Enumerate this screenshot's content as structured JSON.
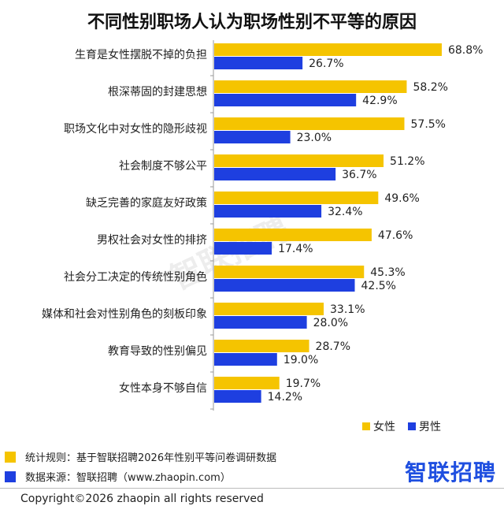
{
  "colors": {
    "female": "#F5C400",
    "male": "#1E3FE0",
    "brand": "#1F4FE0"
  },
  "title": "不同性别职场人认为职场性别不平等的原因",
  "watermark": "智联招聘",
  "chart_data": {
    "type": "bar",
    "orientation": "horizontal",
    "title": "不同性别职场人认为职场性别不平等的原因",
    "categories": [
      "生育是女性摆脱不掉的负担",
      "根深蒂固的封建思想",
      "职场文化中对女性的隐形歧视",
      "社会制度不够公平",
      "缺乏完善的家庭友好政策",
      "男权社会对女性的排挤",
      "社会分工决定的传统性别角色",
      "媒体和社会对性别角色的刻板印象",
      "教育导致的性别偏见",
      "女性本身不够自信"
    ],
    "series": [
      {
        "name": "女性",
        "values": [
          68.8,
          58.2,
          57.5,
          51.2,
          49.6,
          47.6,
          45.3,
          33.1,
          28.7,
          19.7
        ]
      },
      {
        "name": "男性",
        "values": [
          26.7,
          42.9,
          23.0,
          36.7,
          32.4,
          17.4,
          42.5,
          28.0,
          19.0,
          14.2
        ]
      }
    ],
    "value_suffix": "%",
    "xlim": [
      0,
      70
    ],
    "legend_position": "bottom-right"
  },
  "footer": {
    "rule": "统计规则：基于智联招聘2026年性别平等问卷调研数据",
    "source": "数据来源：智联招聘（www.zhaopin.com）",
    "brand": "智联招聘",
    "copyright": "Copyright©2026 zhaopin all rights reserved"
  }
}
